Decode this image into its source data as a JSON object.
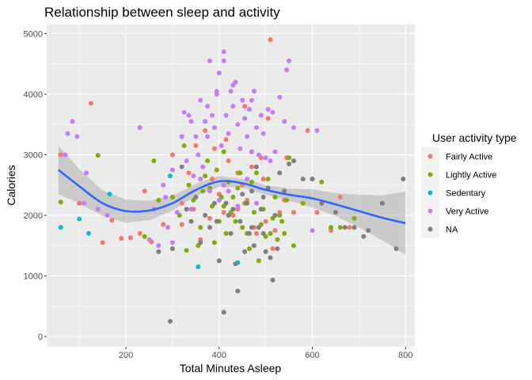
{
  "chart_data": {
    "type": "scatter",
    "title": "Relationship between sleep and activity",
    "xlabel": "Total Minutes Asleep",
    "ylabel": "Calories",
    "xlim": [
      30,
      820
    ],
    "ylim": [
      -170,
      5150
    ],
    "xticks": [
      200,
      400,
      600,
      800
    ],
    "yticks": [
      0,
      1000,
      2000,
      3000,
      4000,
      5000
    ],
    "grid": true,
    "legend": {
      "title": "User activity type",
      "position": "right"
    },
    "series": [
      {
        "name": "Fairly Active",
        "color": "#F8766D",
        "points": [
          [
            60,
            3000
          ],
          [
            100,
            2200
          ],
          [
            125,
            3850
          ],
          [
            150,
            1550
          ],
          [
            170,
            1920
          ],
          [
            190,
            1620
          ],
          [
            210,
            1630
          ],
          [
            230,
            1700
          ],
          [
            240,
            2400
          ],
          [
            255,
            1560
          ],
          [
            280,
            1850
          ],
          [
            300,
            3000
          ],
          [
            320,
            2200
          ],
          [
            335,
            2700
          ],
          [
            350,
            3150
          ],
          [
            360,
            1600
          ],
          [
            370,
            3400
          ],
          [
            380,
            1950
          ],
          [
            390,
            3100
          ],
          [
            400,
            2350
          ],
          [
            410,
            2050
          ],
          [
            415,
            3250
          ],
          [
            420,
            2900
          ],
          [
            430,
            2000
          ],
          [
            440,
            2700
          ],
          [
            450,
            2500
          ],
          [
            455,
            3800
          ],
          [
            460,
            2250
          ],
          [
            470,
            3050
          ],
          [
            475,
            1800
          ],
          [
            480,
            1700
          ],
          [
            490,
            2950
          ],
          [
            500,
            1900
          ],
          [
            505,
            3600
          ],
          [
            510,
            4900
          ],
          [
            515,
            1450
          ],
          [
            520,
            1750
          ],
          [
            530,
            2050
          ],
          [
            540,
            2250
          ],
          [
            545,
            2950
          ],
          [
            560,
            2050
          ],
          [
            590,
            3400
          ],
          [
            610,
            2050
          ],
          [
            640,
            1750
          ],
          [
            660,
            2300
          ],
          [
            680,
            1800
          ],
          [
            320,
            1850
          ],
          [
            345,
            2100
          ],
          [
            385,
            2600
          ],
          [
            440,
            2100
          ],
          [
            470,
            2800
          ],
          [
            495,
            2600
          ]
        ]
      },
      {
        "name": "Lightly Active",
        "color": "#7CAE00",
        "points": [
          [
            60,
            2220
          ],
          [
            140,
            2990
          ],
          [
            240,
            1650
          ],
          [
            260,
            2900
          ],
          [
            270,
            2250
          ],
          [
            300,
            2300
          ],
          [
            315,
            2000
          ],
          [
            325,
            3150
          ],
          [
            330,
            1420
          ],
          [
            335,
            2500
          ],
          [
            340,
            2100
          ],
          [
            345,
            2250
          ],
          [
            355,
            1500
          ],
          [
            360,
            1800
          ],
          [
            365,
            2400
          ],
          [
            370,
            2650
          ],
          [
            375,
            2900
          ],
          [
            380,
            2450
          ],
          [
            385,
            2150
          ],
          [
            390,
            1550
          ],
          [
            395,
            2750
          ],
          [
            400,
            1900
          ],
          [
            405,
            2300
          ],
          [
            410,
            3050
          ],
          [
            415,
            1700
          ],
          [
            420,
            2550
          ],
          [
            425,
            2050
          ],
          [
            430,
            2300
          ],
          [
            435,
            1900
          ],
          [
            440,
            2450
          ],
          [
            445,
            2700
          ],
          [
            450,
            1800
          ],
          [
            455,
            2200
          ],
          [
            460,
            1700
          ],
          [
            465,
            1450
          ],
          [
            470,
            2550
          ],
          [
            475,
            2050
          ],
          [
            480,
            2700
          ],
          [
            485,
            1250
          ],
          [
            490,
            1850
          ],
          [
            495,
            2100
          ],
          [
            500,
            1650
          ],
          [
            505,
            2600
          ],
          [
            510,
            1700
          ],
          [
            515,
            1950
          ],
          [
            520,
            2300
          ],
          [
            525,
            1600
          ],
          [
            530,
            2000
          ],
          [
            535,
            1900
          ],
          [
            540,
            1700
          ],
          [
            545,
            2250
          ],
          [
            550,
            2950
          ],
          [
            560,
            1500
          ],
          [
            580,
            2200
          ],
          [
            600,
            2600
          ],
          [
            620,
            2550
          ],
          [
            640,
            1800
          ],
          [
            660,
            1800
          ],
          [
            690,
            1950
          ],
          [
            410,
            2150
          ]
        ]
      },
      {
        "name": "Sedentary",
        "color": "#00BFC4",
        "points": [
          [
            60,
            1800
          ],
          [
            100,
            1940
          ],
          [
            120,
            1700
          ],
          [
            165,
            2350
          ],
          [
            295,
            2650
          ],
          [
            355,
            1150
          ],
          [
            440,
            1220
          ]
        ]
      },
      {
        "name": "Very Active",
        "color": "#C77CFF",
        "points": [
          [
            70,
            3000
          ],
          [
            75,
            3350
          ],
          [
            85,
            3550
          ],
          [
            95,
            3300
          ],
          [
            110,
            2200
          ],
          [
            115,
            2700
          ],
          [
            140,
            2100
          ],
          [
            160,
            2000
          ],
          [
            230,
            3450
          ],
          [
            270,
            1500
          ],
          [
            280,
            2500
          ],
          [
            290,
            1800
          ],
          [
            300,
            1550
          ],
          [
            310,
            2050
          ],
          [
            320,
            3300
          ],
          [
            325,
            3700
          ],
          [
            330,
            2900
          ],
          [
            335,
            3650
          ],
          [
            340,
            3550
          ],
          [
            345,
            2650
          ],
          [
            350,
            3300
          ],
          [
            355,
            3000
          ],
          [
            360,
            3900
          ],
          [
            365,
            2800
          ],
          [
            370,
            3550
          ],
          [
            375,
            3800
          ],
          [
            380,
            4550
          ],
          [
            385,
            3650
          ],
          [
            390,
            3450
          ],
          [
            395,
            4050
          ],
          [
            400,
            4350
          ],
          [
            405,
            3150
          ],
          [
            410,
            4550
          ],
          [
            415,
            3650
          ],
          [
            420,
            3350
          ],
          [
            425,
            4050
          ],
          [
            430,
            3800
          ],
          [
            435,
            4200
          ],
          [
            440,
            3500
          ],
          [
            445,
            3100
          ],
          [
            450,
            3900
          ],
          [
            455,
            3600
          ],
          [
            460,
            3300
          ],
          [
            465,
            3750
          ],
          [
            470,
            3050
          ],
          [
            475,
            4050
          ],
          [
            480,
            3450
          ],
          [
            485,
            3000
          ],
          [
            490,
            3650
          ],
          [
            495,
            3350
          ],
          [
            500,
            2950
          ],
          [
            505,
            3750
          ],
          [
            510,
            2900
          ],
          [
            515,
            3700
          ],
          [
            520,
            3050
          ],
          [
            530,
            3950
          ],
          [
            540,
            3550
          ],
          [
            550,
            4550
          ],
          [
            560,
            3450
          ],
          [
            600,
            1750
          ],
          [
            610,
            3400
          ],
          [
            400,
            2250
          ],
          [
            420,
            2400
          ],
          [
            440,
            2150
          ],
          [
            460,
            2600
          ],
          [
            480,
            2200
          ],
          [
            380,
            2400
          ],
          [
            360,
            2600
          ],
          [
            340,
            2100
          ],
          [
            300,
            2750
          ],
          [
            285,
            2300
          ],
          [
            260,
            2100
          ],
          [
            250,
            1600
          ],
          [
            410,
            4700
          ],
          [
            395,
            4000
          ],
          [
            375,
            3300
          ],
          [
            545,
            4400
          ],
          [
            470,
            3900
          ],
          [
            430,
            4150
          ],
          [
            410,
            2500
          ]
        ]
      },
      {
        "name": "NA",
        "color": "#7F7F7F",
        "points": [
          [
            270,
            1400
          ],
          [
            295,
            250
          ],
          [
            300,
            1450
          ],
          [
            320,
            2800
          ],
          [
            330,
            2100
          ],
          [
            340,
            1900
          ],
          [
            350,
            2300
          ],
          [
            360,
            1550
          ],
          [
            370,
            2000
          ],
          [
            380,
            1800
          ],
          [
            390,
            2200
          ],
          [
            395,
            1900
          ],
          [
            400,
            1250
          ],
          [
            410,
            400
          ],
          [
            415,
            2200
          ],
          [
            420,
            2000
          ],
          [
            425,
            1700
          ],
          [
            430,
            2100
          ],
          [
            435,
            1200
          ],
          [
            440,
            750
          ],
          [
            445,
            1900
          ],
          [
            450,
            2350
          ],
          [
            455,
            1400
          ],
          [
            460,
            2200
          ],
          [
            465,
            1700
          ],
          [
            470,
            2400
          ],
          [
            475,
            1500
          ],
          [
            480,
            2800
          ],
          [
            485,
            1800
          ],
          [
            490,
            2100
          ],
          [
            495,
            2300
          ],
          [
            500,
            1400
          ],
          [
            505,
            2450
          ],
          [
            510,
            1300
          ],
          [
            515,
            930
          ],
          [
            520,
            2000
          ],
          [
            525,
            1450
          ],
          [
            530,
            2700
          ],
          [
            540,
            2400
          ],
          [
            550,
            2850
          ],
          [
            560,
            2900
          ],
          [
            580,
            2600
          ],
          [
            600,
            2600
          ],
          [
            620,
            2200
          ],
          [
            650,
            2050
          ],
          [
            670,
            1800
          ],
          [
            690,
            1800
          ],
          [
            710,
            1650
          ],
          [
            720,
            1750
          ],
          [
            750,
            2200
          ],
          [
            780,
            1450
          ],
          [
            795,
            2600
          ],
          [
            495,
            1700
          ],
          [
            470,
            1800
          ]
        ]
      }
    ],
    "smooth": {
      "color": "#3366FF",
      "ci_fill": "#999999",
      "x": [
        55,
        100,
        150,
        200,
        250,
        300,
        350,
        400,
        450,
        500,
        550,
        600,
        650,
        700,
        750,
        800
      ],
      "y": [
        2750,
        2480,
        2200,
        2070,
        2080,
        2200,
        2420,
        2560,
        2530,
        2420,
        2340,
        2280,
        2180,
        2070,
        1960,
        1870
      ],
      "lower": [
        2350,
        2200,
        1990,
        1880,
        1920,
        2080,
        2320,
        2470,
        2460,
        2340,
        2240,
        2130,
        1990,
        1800,
        1590,
        1350
      ],
      "upper": [
        3150,
        2760,
        2410,
        2260,
        2240,
        2320,
        2520,
        2650,
        2600,
        2500,
        2440,
        2430,
        2370,
        2340,
        2330,
        2390
      ]
    }
  }
}
